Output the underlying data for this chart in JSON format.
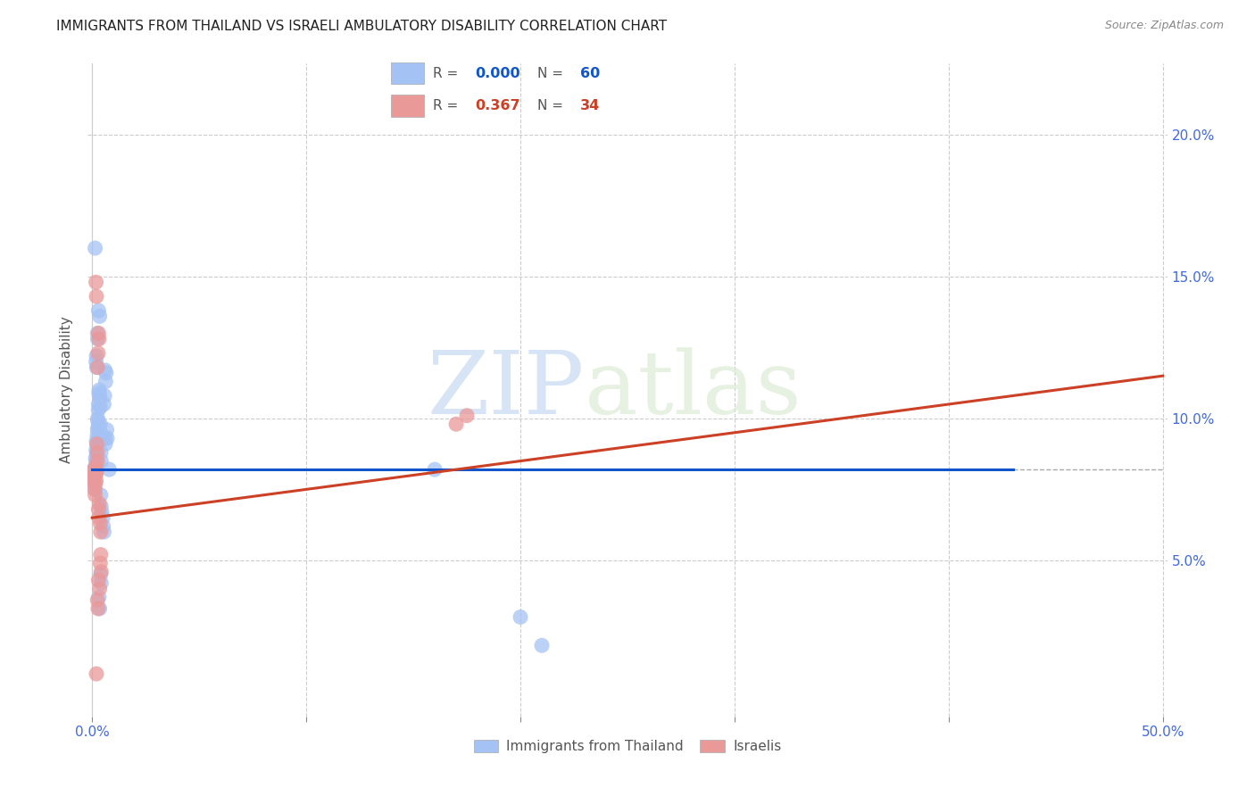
{
  "title": "IMMIGRANTS FROM THAILAND VS ISRAELI AMBULATORY DISABILITY CORRELATION CHART",
  "source": "Source: ZipAtlas.com",
  "ylabel": "Ambulatory Disability",
  "xlim": [
    -0.002,
    0.502
  ],
  "ylim": [
    -0.005,
    0.225
  ],
  "xtick_labels": [
    "0.0%",
    "",
    "",
    "",
    "",
    "50.0%"
  ],
  "xtick_vals": [
    0.0,
    0.1,
    0.2,
    0.3,
    0.4,
    0.5
  ],
  "ytick_labels": [
    "5.0%",
    "10.0%",
    "15.0%",
    "20.0%"
  ],
  "ytick_vals": [
    0.05,
    0.1,
    0.15,
    0.2
  ],
  "blue_color": "#a4c2f4",
  "pink_color": "#ea9999",
  "blue_line_color": "#1155cc",
  "pink_line_color": "#cc4125",
  "watermark_zip": "ZIP",
  "watermark_atlas": "atlas",
  "scatter_blue": [
    [
      0.0008,
      0.082
    ],
    [
      0.001,
      0.079
    ],
    [
      0.0012,
      0.077
    ],
    [
      0.0014,
      0.075
    ],
    [
      0.0015,
      0.083
    ],
    [
      0.0016,
      0.086
    ],
    [
      0.0017,
      0.081
    ],
    [
      0.0018,
      0.085
    ],
    [
      0.0019,
      0.089
    ],
    [
      0.002,
      0.092
    ],
    [
      0.0021,
      0.088
    ],
    [
      0.0022,
      0.087
    ],
    [
      0.0023,
      0.091
    ],
    [
      0.0024,
      0.094
    ],
    [
      0.0025,
      0.096
    ],
    [
      0.0026,
      0.1
    ],
    [
      0.0027,
      0.099
    ],
    [
      0.0028,
      0.097
    ],
    [
      0.0029,
      0.103
    ],
    [
      0.003,
      0.105
    ],
    [
      0.0032,
      0.109
    ],
    [
      0.0033,
      0.11
    ],
    [
      0.0035,
      0.108
    ],
    [
      0.0036,
      0.107
    ],
    [
      0.0037,
      0.104
    ],
    [
      0.0038,
      0.098
    ],
    [
      0.0039,
      0.095
    ],
    [
      0.004,
      0.092
    ],
    [
      0.0041,
      0.088
    ],
    [
      0.0042,
      0.085
    ],
    [
      0.0018,
      0.12
    ],
    [
      0.002,
      0.122
    ],
    [
      0.0021,
      0.118
    ],
    [
      0.0025,
      0.13
    ],
    [
      0.0026,
      0.128
    ],
    [
      0.003,
      0.138
    ],
    [
      0.0035,
      0.136
    ],
    [
      0.0014,
      0.16
    ],
    [
      0.006,
      0.117
    ],
    [
      0.0063,
      0.113
    ],
    [
      0.0065,
      0.116
    ],
    [
      0.0055,
      0.105
    ],
    [
      0.0058,
      0.108
    ],
    [
      0.006,
      0.093
    ],
    [
      0.0062,
      0.091
    ],
    [
      0.0068,
      0.096
    ],
    [
      0.007,
      0.093
    ],
    [
      0.008,
      0.082
    ],
    [
      0.004,
      0.073
    ],
    [
      0.0042,
      0.069
    ],
    [
      0.0045,
      0.067
    ],
    [
      0.005,
      0.065
    ],
    [
      0.0052,
      0.062
    ],
    [
      0.0055,
      0.06
    ],
    [
      0.004,
      0.045
    ],
    [
      0.0042,
      0.042
    ],
    [
      0.0032,
      0.037
    ],
    [
      0.0035,
      0.033
    ],
    [
      0.16,
      0.082
    ],
    [
      0.2,
      0.03
    ],
    [
      0.21,
      0.02
    ]
  ],
  "scatter_pink": [
    [
      0.0006,
      0.078
    ],
    [
      0.0008,
      0.08
    ],
    [
      0.001,
      0.082
    ],
    [
      0.0012,
      0.075
    ],
    [
      0.0014,
      0.073
    ],
    [
      0.0015,
      0.077
    ],
    [
      0.0016,
      0.08
    ],
    [
      0.0017,
      0.083
    ],
    [
      0.0018,
      0.078
    ],
    [
      0.002,
      0.081
    ],
    [
      0.0022,
      0.091
    ],
    [
      0.0024,
      0.088
    ],
    [
      0.0025,
      0.085
    ],
    [
      0.0018,
      0.148
    ],
    [
      0.002,
      0.143
    ],
    [
      0.003,
      0.13
    ],
    [
      0.0032,
      0.128
    ],
    [
      0.0025,
      0.118
    ],
    [
      0.0028,
      0.123
    ],
    [
      0.003,
      0.068
    ],
    [
      0.0032,
      0.065
    ],
    [
      0.0033,
      0.07
    ],
    [
      0.0038,
      0.063
    ],
    [
      0.004,
      0.06
    ],
    [
      0.0038,
      0.049
    ],
    [
      0.004,
      0.052
    ],
    [
      0.0042,
      0.046
    ],
    [
      0.003,
      0.043
    ],
    [
      0.0035,
      0.04
    ],
    [
      0.0025,
      0.036
    ],
    [
      0.0028,
      0.033
    ],
    [
      0.002,
      0.01
    ],
    [
      0.17,
      0.098
    ],
    [
      0.175,
      0.101
    ]
  ],
  "blue_trend_x": [
    0.0,
    0.43
  ],
  "blue_trend_y": [
    0.082,
    0.082
  ],
  "pink_trend_x": [
    0.0,
    0.5
  ],
  "pink_trend_y": [
    0.065,
    0.115
  ],
  "hline_y": 0.082,
  "hline_x_start": 0.43,
  "hline_x_end": 0.5
}
